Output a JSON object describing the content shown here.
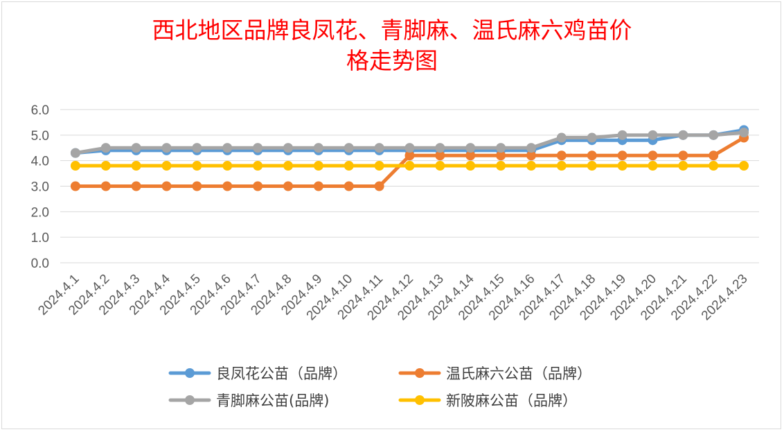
{
  "chart_data": {
    "type": "line",
    "title_lines": [
      "西北地区品牌良凤花、青脚麻、温氏麻六鸡苗价",
      "格走势图"
    ],
    "xlabel": "",
    "ylabel": "",
    "ylim": [
      0,
      6
    ],
    "yticks": [
      "0.0",
      "1.0",
      "2.0",
      "3.0",
      "4.0",
      "5.0",
      "6.0"
    ],
    "grid": true,
    "legend_position": "bottom",
    "categories": [
      "2024.4.1",
      "2024.4.2",
      "2024.4.3",
      "2024.4.4",
      "2024.4.5",
      "2024.4.6",
      "2024.4.7",
      "2024.4.8",
      "2024.4.9",
      "2024.4.10",
      "2024.4.11",
      "2024.4.12",
      "2024.4.13",
      "2024.4.14",
      "2024.4.15",
      "2024.4.16",
      "2024.4.17",
      "2024.4.18",
      "2024.4.19",
      "2024.4.20",
      "2024.4.21",
      "2024.4.22",
      "2024.4.23"
    ],
    "series": [
      {
        "name": "良凤花公苗（品牌）",
        "color": "#5b9bd5",
        "values": [
          4.3,
          4.4,
          4.4,
          4.4,
          4.4,
          4.4,
          4.4,
          4.4,
          4.4,
          4.4,
          4.4,
          4.4,
          4.4,
          4.4,
          4.4,
          4.4,
          4.8,
          4.8,
          4.8,
          4.8,
          5.0,
          5.0,
          5.2
        ]
      },
      {
        "name": "温氏麻六公苗（品牌）",
        "color": "#ed7d31",
        "values": [
          3.0,
          3.0,
          3.0,
          3.0,
          3.0,
          3.0,
          3.0,
          3.0,
          3.0,
          3.0,
          3.0,
          4.2,
          4.2,
          4.2,
          4.2,
          4.2,
          4.2,
          4.2,
          4.2,
          4.2,
          4.2,
          4.2,
          4.9
        ]
      },
      {
        "name": "青脚麻公苗(品牌)",
        "color": "#a5a5a5",
        "values": [
          4.3,
          4.5,
          4.5,
          4.5,
          4.5,
          4.5,
          4.5,
          4.5,
          4.5,
          4.5,
          4.5,
          4.5,
          4.5,
          4.5,
          4.5,
          4.5,
          4.9,
          4.9,
          5.0,
          5.0,
          5.0,
          5.0,
          5.1
        ]
      },
      {
        "name": "新陂麻公苗（品牌）",
        "color": "#ffc000",
        "values": [
          3.8,
          3.8,
          3.8,
          3.8,
          3.8,
          3.8,
          3.8,
          3.8,
          3.8,
          3.8,
          3.8,
          3.8,
          3.8,
          3.8,
          3.8,
          3.8,
          3.8,
          3.8,
          3.8,
          3.8,
          3.8,
          3.8,
          3.8
        ]
      }
    ],
    "legend_order": [
      0,
      1,
      2,
      3
    ]
  }
}
